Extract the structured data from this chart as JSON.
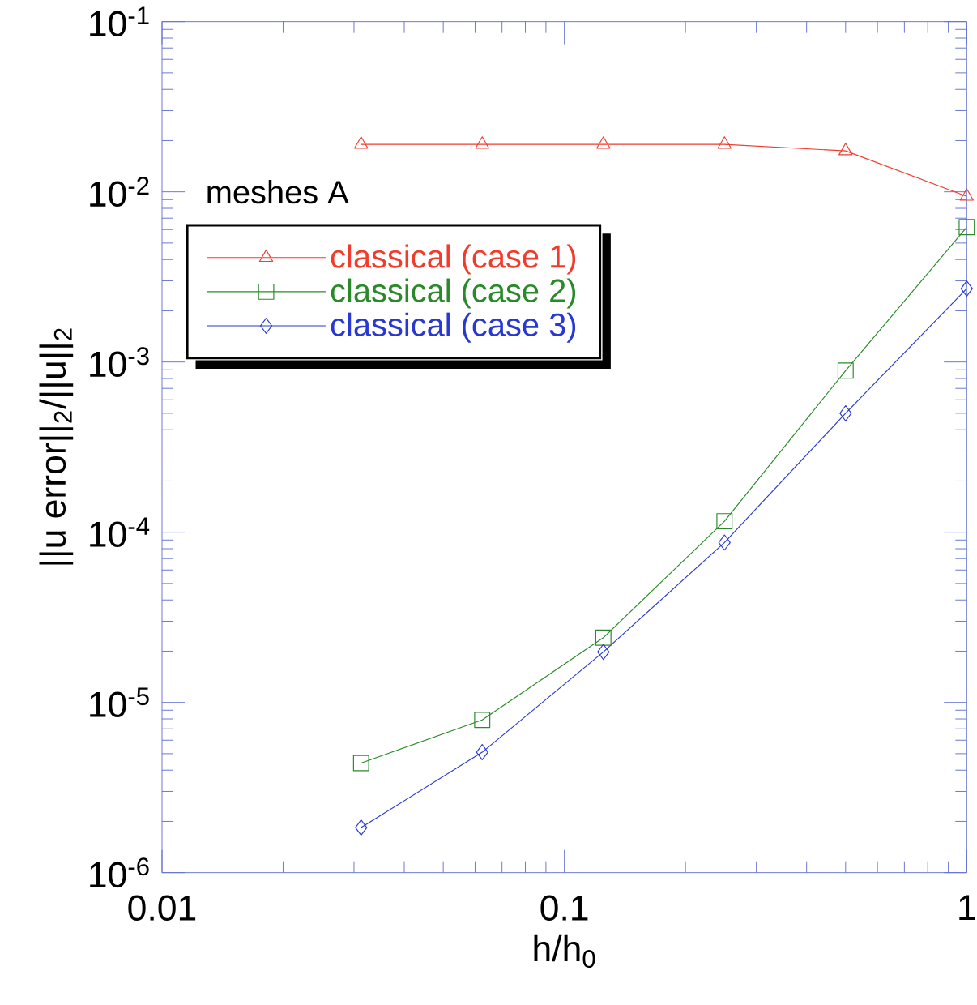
{
  "chart_data": {
    "type": "line",
    "xlabel": "h/h$_{0}$",
    "ylabel": "||u error||$_{2}$/||u||$_{2}$",
    "log": "xy",
    "xlim": [
      0.01,
      1
    ],
    "ylim": [
      1e-06,
      0.1
    ],
    "xticks": [
      0.01,
      0.1,
      1
    ],
    "yticks": [
      {
        "value": 1e-06,
        "label": "10$^{-6}$"
      },
      {
        "value": 1e-05,
        "label": "10$^{-5}$"
      },
      {
        "value": 0.0001,
        "label": "10$^{-4}$"
      },
      {
        "value": 0.001,
        "label": "10$^{-3}$"
      },
      {
        "value": 0.01,
        "label": "10$^{-2}$"
      },
      {
        "value": 0.1,
        "label": "10$^{-1}$"
      }
    ],
    "x": [
      0.03125,
      0.0625,
      0.125,
      0.25,
      0.5,
      1
    ],
    "legend": "top left",
    "legend_title": "meshes A",
    "line_style": "solid",
    "series": [
      {
        "name": "classical (case 1)",
        "color": "#f03c2c",
        "marker": "triangle",
        "values": [
          0.019,
          0.019,
          0.019,
          0.019,
          0.0174,
          0.0094
        ]
      },
      {
        "name": "classical (case 2)",
        "color": "#2a8a2a",
        "marker": "square",
        "values": [
          4.4e-06,
          7.9e-06,
          2.4e-05,
          0.000116,
          0.00089,
          0.0062
        ]
      },
      {
        "name": "classical (case 3)",
        "color": "#2838d0",
        "marker": "diamond",
        "values": [
          1.84e-06,
          5.1e-06,
          1.98e-05,
          8.7e-05,
          0.0005,
          0.0027
        ]
      }
    ]
  }
}
